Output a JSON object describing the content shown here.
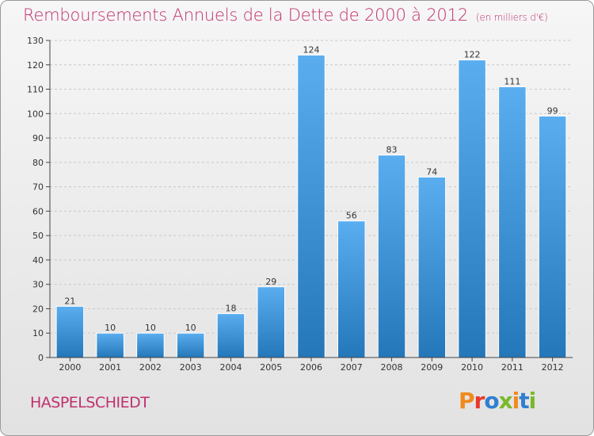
{
  "title": "Remboursements Annuels de la Dette de 2000 à 2012",
  "unit": "(en milliers d'€)",
  "commune": "HASPELSCHIEDT",
  "logo": {
    "text": "Proxiti",
    "letters": [
      "P",
      "r",
      "o",
      "x",
      "i",
      "t",
      "i"
    ],
    "colors": [
      "#f08a1c",
      "#e8392a",
      "#2e7fd0",
      "#7ab829",
      "#f08a1c",
      "#2e7fd0",
      "#7ab829"
    ]
  },
  "colors": {
    "title": "#c0306e",
    "bar_top": "#5aaef0",
    "bar_bottom": "#2477b9"
  },
  "chart_data": {
    "type": "bar",
    "categories": [
      "2000",
      "2001",
      "2002",
      "2003",
      "2004",
      "2005",
      "2006",
      "2007",
      "2008",
      "2009",
      "2010",
      "2011",
      "2012"
    ],
    "values": [
      21,
      10,
      10,
      10,
      18,
      29,
      124,
      56,
      83,
      74,
      122,
      111,
      99
    ],
    "data_labels": [
      "21",
      "10",
      "10",
      "10",
      "18",
      "29",
      "124",
      "56",
      "83",
      "74",
      "122",
      "111",
      "99"
    ],
    "ylim": [
      0,
      130
    ],
    "yticks": [
      0,
      10,
      20,
      30,
      40,
      50,
      60,
      70,
      80,
      90,
      100,
      110,
      120,
      130
    ],
    "grid": true,
    "legend": "none"
  }
}
